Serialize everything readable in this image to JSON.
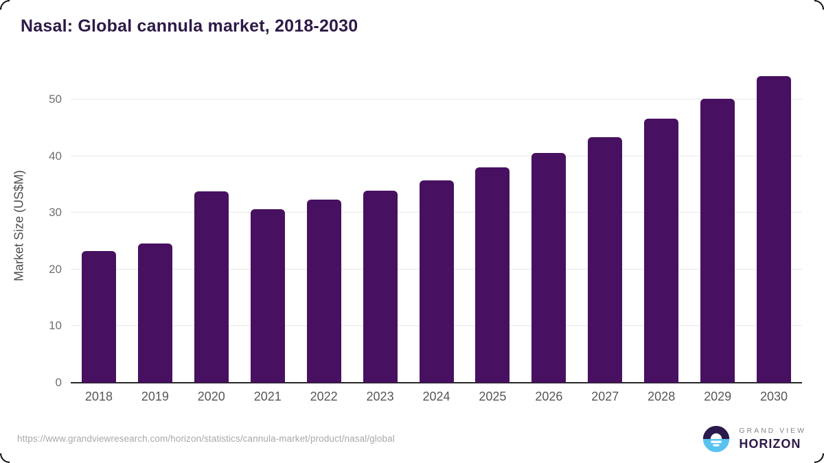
{
  "page": {
    "source_url": "https://www.grandviewresearch.com/horizon/statistics/cannula-market/product/nasal/global"
  },
  "chart_data": {
    "type": "bar",
    "title": "Nasal: Global cannula market, 2018-2030",
    "xlabel": "",
    "ylabel": "Market Size (US$M)",
    "categories": [
      "2018",
      "2019",
      "2020",
      "2021",
      "2022",
      "2023",
      "2024",
      "2025",
      "2026",
      "2027",
      "2028",
      "2029",
      "2030"
    ],
    "values": [
      23.2,
      24.6,
      33.8,
      30.6,
      32.3,
      33.9,
      35.7,
      38.0,
      40.6,
      43.3,
      46.6,
      50.1,
      54.1
    ],
    "yticks": [
      0,
      10,
      20,
      30,
      40,
      50
    ],
    "ylim": [
      0,
      55.4
    ],
    "grid": true,
    "legend_position": "none",
    "bar_color": "#471061",
    "axis_color": "#262626",
    "gridline_color": "#e7e7e7",
    "title_color": "#2d1a47"
  },
  "branding": {
    "logo_line1": "GRAND VIEW",
    "logo_line2": "HORIZON",
    "logo_icon": "horizon-sun-icon",
    "icon_purple": "#2b1a4b",
    "icon_blue": "#59c3f0"
  }
}
